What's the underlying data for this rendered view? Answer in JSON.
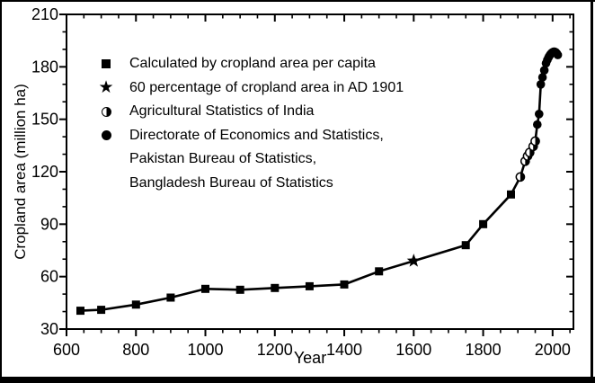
{
  "chart_data": {
    "type": "line",
    "title": "",
    "xlabel": "Year",
    "ylabel": "Cropland area (million ha)",
    "xlim": [
      600,
      2060
    ],
    "ylim": [
      30,
      210
    ],
    "x_major_ticks": [
      600,
      800,
      1000,
      1200,
      1400,
      1600,
      1800,
      2000
    ],
    "x_minor_step": 50,
    "y_major_ticks": [
      30,
      60,
      90,
      120,
      150,
      180,
      210
    ],
    "y_minor_step": 10,
    "grid": "off",
    "line_color": "#000000",
    "background_color": "#ffffff",
    "connected": true,
    "series": [
      {
        "name": "Calculated by cropland area per capita",
        "marker": "square",
        "points": [
          [
            640,
            40.5
          ],
          [
            700,
            41
          ],
          [
            800,
            44
          ],
          [
            900,
            48
          ],
          [
            1000,
            53
          ],
          [
            1100,
            52.5
          ],
          [
            1200,
            53.5
          ],
          [
            1300,
            54.5
          ],
          [
            1400,
            55.5
          ],
          [
            1500,
            63
          ],
          [
            1750,
            78
          ],
          [
            1800,
            90
          ],
          [
            1880,
            107
          ]
        ]
      },
      {
        "name": "60 percentage of cropland area in AD 1901",
        "marker": "star",
        "points": [
          [
            1600,
            69
          ]
        ]
      },
      {
        "name": "Agricultural Statistics of India",
        "marker": "half-circle",
        "points": [
          [
            1907,
            117
          ],
          [
            1921,
            126
          ],
          [
            1928,
            129
          ],
          [
            1934,
            131
          ],
          [
            1944,
            134.5
          ],
          [
            1950,
            137.5
          ]
        ]
      },
      {
        "name": "Directorate of Economics and Statistics, Pakistan Bureau of Statistics, Bangladesh Bureau of Statistics",
        "marker": "circle",
        "points": [
          [
            1956,
            147
          ],
          [
            1961,
            153
          ],
          [
            1966,
            170
          ],
          [
            1971,
            174
          ],
          [
            1976,
            178
          ],
          [
            1981,
            182
          ],
          [
            1985,
            184
          ],
          [
            1988,
            185.3
          ],
          [
            1991,
            186.3
          ],
          [
            1994,
            187.2
          ],
          [
            1997,
            187.9
          ],
          [
            2000,
            188.3
          ],
          [
            2003,
            188.6
          ],
          [
            2006,
            188.6
          ],
          [
            2009,
            188.3
          ],
          [
            2012,
            187.7
          ],
          [
            2015,
            186.8
          ]
        ]
      }
    ],
    "legend": {
      "position": "upper-left-inside",
      "items": [
        {
          "marker": "square",
          "label": "Calculated by cropland area per capita"
        },
        {
          "marker": "star",
          "label": "60 percentage of cropland area in AD 1901"
        },
        {
          "marker": "half-circle",
          "label": "Agricultural Statistics of India"
        },
        {
          "marker": "circle",
          "label": "Directorate of Economics and Statistics,",
          "label_line2": "Pakistan Bureau of Statistics,",
          "label_line3": "Bangladesh Bureau of Statistics"
        }
      ]
    }
  }
}
